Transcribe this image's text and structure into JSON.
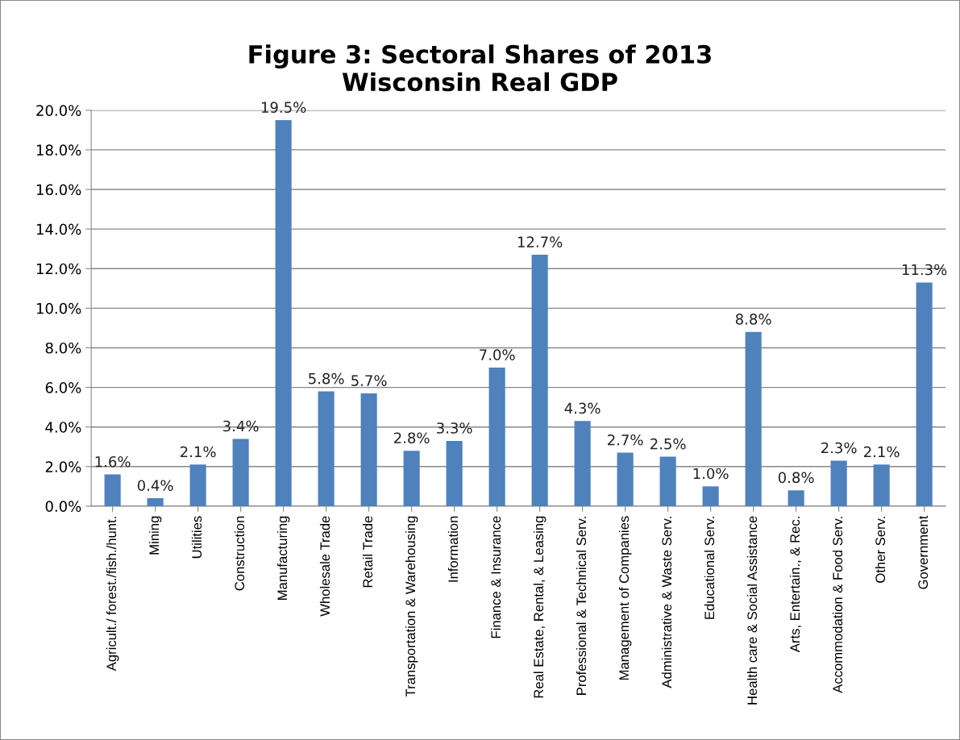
{
  "chart_data": {
    "type": "bar",
    "title": "Figure 3: Sectoral Shares of 2013\nWisconsin Real GDP",
    "categories": [
      "Agricult./ forest./fish./hunt.",
      "Mining",
      "Utilities",
      "Construction",
      "Manufacturing",
      "Wholesale Trade",
      "Retail Trade",
      "Transportation & Warehousing",
      "Information",
      "Finance & Insurance",
      "Real Estate, Rental, & Leasing",
      "Professional & Technical Serv.",
      "Management of Companies",
      "Administrative & Waste Serv.",
      "Educational Serv.",
      "Health care & Social Assistance",
      "Arts, Entertain., & Rec.",
      "Accommodation & Food Serv.",
      "Other Serv.",
      "Government"
    ],
    "values": [
      1.6,
      0.4,
      2.1,
      3.4,
      19.5,
      5.8,
      5.7,
      2.8,
      3.3,
      7.0,
      12.7,
      4.3,
      2.7,
      2.5,
      1.0,
      8.8,
      0.8,
      2.3,
      2.1,
      11.3
    ],
    "value_labels": [
      "1.6%",
      "0.4%",
      "2.1%",
      "3.4%",
      "19.5%",
      "5.8%",
      "5.7%",
      "2.8%",
      "3.3%",
      "7.0%",
      "12.7%",
      "4.3%",
      "2.7%",
      "2.5%",
      "1.0%",
      "8.8%",
      "0.8%",
      "2.3%",
      "2.1%",
      "11.3%"
    ],
    "color": "#4f81bd",
    "ylim": [
      0,
      20
    ],
    "yticks": [
      {
        "value": 0,
        "label": "0.0%"
      },
      {
        "value": 2,
        "label": "2.0%"
      },
      {
        "value": 4,
        "label": "4.0%"
      },
      {
        "value": 6,
        "label": "6.0%"
      },
      {
        "value": 8,
        "label": "8.0%"
      },
      {
        "value": 10,
        "label": "10.0%"
      },
      {
        "value": 12,
        "label": "12.0%"
      },
      {
        "value": 14,
        "label": "14.0%"
      },
      {
        "value": 16,
        "label": "16.0%"
      },
      {
        "value": 18,
        "label": "18.0%"
      },
      {
        "value": 20,
        "label": "20.0%"
      }
    ],
    "grid": "y"
  }
}
